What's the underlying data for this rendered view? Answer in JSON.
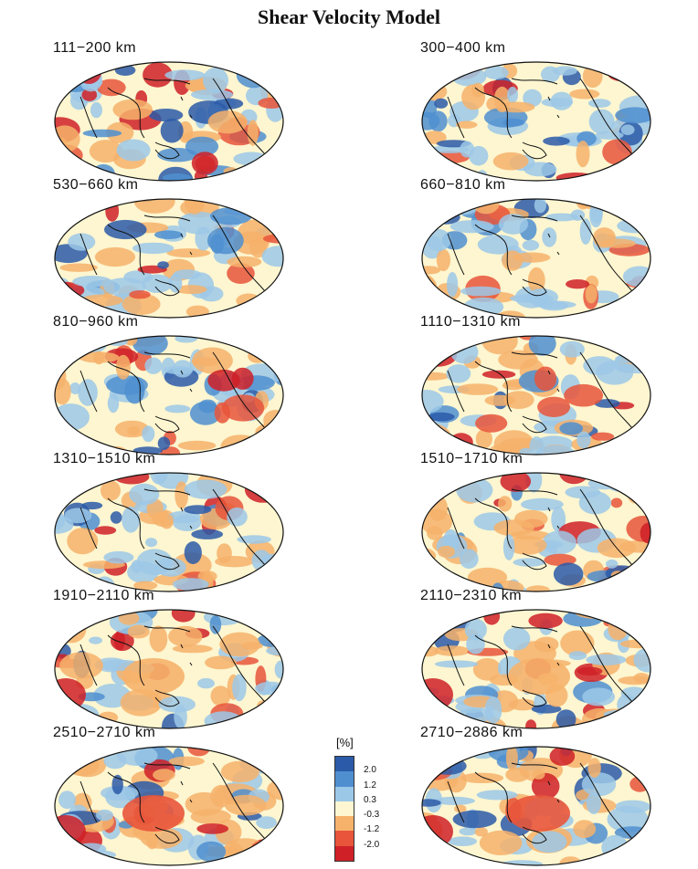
{
  "title": "Shear Velocity Model",
  "panels": [
    {
      "label": "111−200  km",
      "seed": 3
    },
    {
      "label": "300−400  km",
      "seed": 7
    },
    {
      "label": "530−660  km",
      "seed": 11
    },
    {
      "label": "660−810  km",
      "seed": 13
    },
    {
      "label": "810−960  km",
      "seed": 17
    },
    {
      "label": "1110−1310  km",
      "seed": 19
    },
    {
      "label": "1310−1510  km",
      "seed": 23
    },
    {
      "label": "1510−1710  km",
      "seed": 29
    },
    {
      "label": "1910−2110  km",
      "seed": 31
    },
    {
      "label": "2110−2310  km",
      "seed": 37
    },
    {
      "label": "2510−2710  km",
      "seed": 41
    },
    {
      "label": "2710−2886  km",
      "seed": 43
    }
  ],
  "legend": {
    "unit": "[%]",
    "ticks": [
      "2.0",
      "1.2",
      "0.3",
      "-0.3",
      "-1.2",
      "-2.0"
    ],
    "colors": [
      "#2b5aa8",
      "#4f8fd0",
      "#9cc8e8",
      "#fdf6d0",
      "#f6b26b",
      "#e8553b",
      "#cf2027"
    ]
  }
}
